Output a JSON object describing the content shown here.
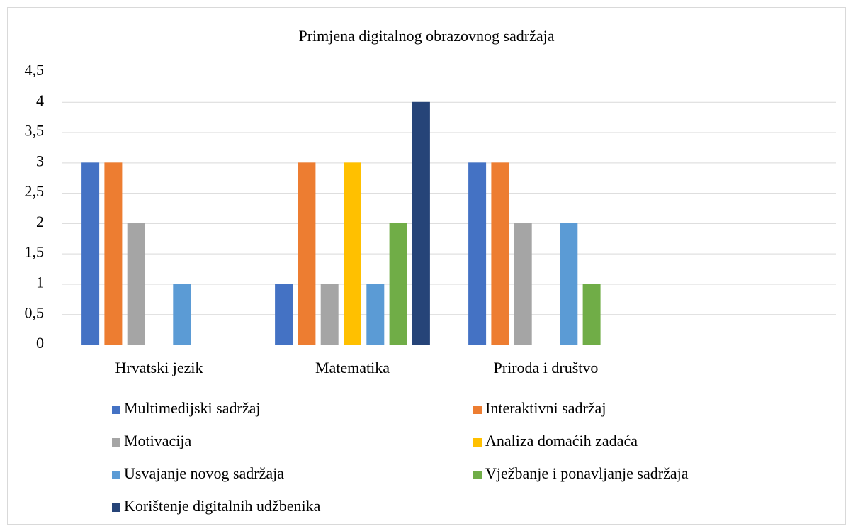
{
  "chart_data": {
    "type": "bar",
    "title": "Primjena digitalnog obrazovnog sadržaja",
    "categories": [
      "Hrvatski jezik",
      "Matematika",
      "Priroda i društvo",
      null
    ],
    "series": [
      {
        "name": "Multimedijski sadržaj",
        "color": "#4472c4",
        "values": [
          3,
          1,
          3,
          null
        ]
      },
      {
        "name": "Interaktivni sadržaj",
        "color": "#ed7d31",
        "values": [
          3,
          3,
          3,
          null
        ]
      },
      {
        "name": "Motivacija",
        "color": "#a5a5a5",
        "values": [
          2,
          1,
          2,
          null
        ]
      },
      {
        "name": "Analiza domaćih zadaća",
        "color": "#ffc000",
        "values": [
          0,
          3,
          0,
          null
        ]
      },
      {
        "name": "Usvajanje novog sadržaja",
        "color": "#5b9bd5",
        "values": [
          1,
          1,
          2,
          null
        ]
      },
      {
        "name": "Vježbanje i ponavljanje sadržaja",
        "color": "#70ad47",
        "values": [
          0,
          2,
          1,
          null
        ]
      },
      {
        "name": "Korištenje digitalnih udžbenika",
        "color": "#264478",
        "values": [
          0,
          4,
          0,
          null
        ]
      }
    ],
    "ylim": [
      0,
      4.5
    ],
    "yticks": [
      0,
      {
        "value": 0.5,
        "label": "0,5"
      },
      1,
      {
        "value": 1.5,
        "label": "1,5"
      },
      2,
      {
        "value": 2.5,
        "label": "2,5"
      },
      3,
      {
        "value": 3.5,
        "label": "3,5"
      },
      4,
      {
        "value": 4.5,
        "label": "4,5"
      }
    ],
    "grid": true,
    "legend": "bottom"
  }
}
